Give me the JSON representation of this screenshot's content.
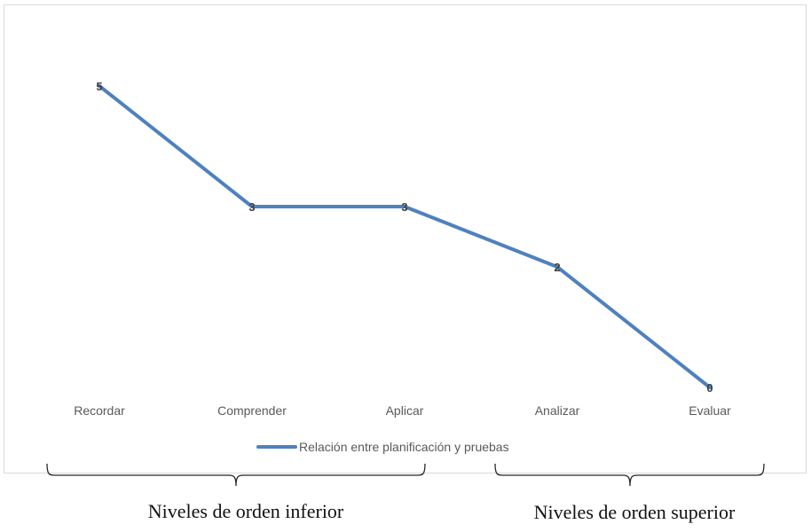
{
  "chart_data": {
    "type": "line",
    "categories": [
      "Recordar",
      "Comprender",
      "Aplicar",
      "Analizar",
      "Evaluar"
    ],
    "series": [
      {
        "name": "Relación entre planificación y pruebas",
        "values": [
          5,
          3,
          3,
          2,
          0
        ],
        "color": "#4f81bd"
      }
    ],
    "data_labels": true,
    "ylim": [
      0,
      5
    ],
    "grid": false,
    "legend": "bottom",
    "title": "",
    "xlabel": "",
    "ylabel": ""
  },
  "groups": [
    {
      "label": "Niveles de orden inferior"
    },
    {
      "label": "Niveles de orden superior"
    }
  ]
}
